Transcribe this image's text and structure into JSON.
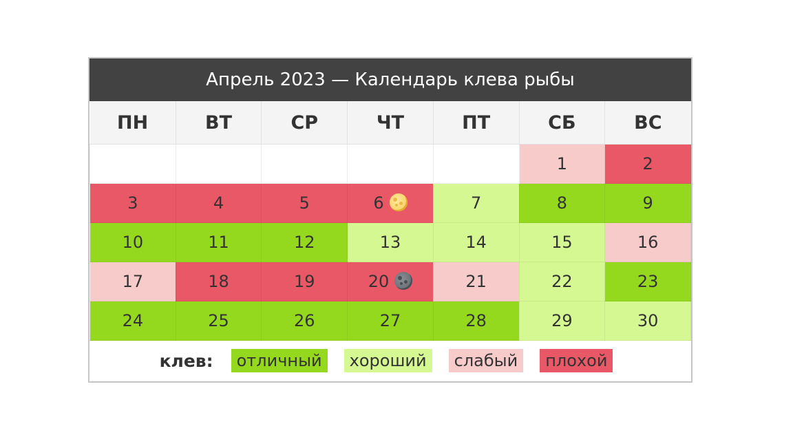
{
  "title": "Апрель 2023 — Календарь клева рыбы",
  "weekdays": [
    "ПН",
    "ВТ",
    "СР",
    "ЧТ",
    "ПТ",
    "СБ",
    "ВС"
  ],
  "weeks": [
    [
      {
        "day": "",
        "status": "empty"
      },
      {
        "day": "",
        "status": "empty"
      },
      {
        "day": "",
        "status": "empty"
      },
      {
        "day": "",
        "status": "empty"
      },
      {
        "day": "",
        "status": "empty"
      },
      {
        "day": "1",
        "status": "weak"
      },
      {
        "day": "2",
        "status": "bad"
      }
    ],
    [
      {
        "day": "3",
        "status": "bad"
      },
      {
        "day": "4",
        "status": "bad"
      },
      {
        "day": "5",
        "status": "bad"
      },
      {
        "day": "6",
        "status": "bad",
        "moon": "full-moon-icon"
      },
      {
        "day": "7",
        "status": "good"
      },
      {
        "day": "8",
        "status": "excellent"
      },
      {
        "day": "9",
        "status": "excellent"
      }
    ],
    [
      {
        "day": "10",
        "status": "excellent"
      },
      {
        "day": "11",
        "status": "excellent"
      },
      {
        "day": "12",
        "status": "excellent"
      },
      {
        "day": "13",
        "status": "good"
      },
      {
        "day": "14",
        "status": "good"
      },
      {
        "day": "15",
        "status": "good"
      },
      {
        "day": "16",
        "status": "weak"
      }
    ],
    [
      {
        "day": "17",
        "status": "weak"
      },
      {
        "day": "18",
        "status": "bad"
      },
      {
        "day": "19",
        "status": "bad"
      },
      {
        "day": "20",
        "status": "bad",
        "moon": "new-moon-icon"
      },
      {
        "day": "21",
        "status": "weak"
      },
      {
        "day": "22",
        "status": "good"
      },
      {
        "day": "23",
        "status": "excellent"
      }
    ],
    [
      {
        "day": "24",
        "status": "excellent"
      },
      {
        "day": "25",
        "status": "excellent"
      },
      {
        "day": "26",
        "status": "excellent"
      },
      {
        "day": "27",
        "status": "excellent"
      },
      {
        "day": "28",
        "status": "excellent"
      },
      {
        "day": "29",
        "status": "good"
      },
      {
        "day": "30",
        "status": "good"
      }
    ]
  ],
  "legend": {
    "title": "клев:",
    "items": [
      {
        "status": "excellent",
        "label": "отличный"
      },
      {
        "status": "good",
        "label": "хороший"
      },
      {
        "status": "weak",
        "label": "слабый"
      },
      {
        "status": "bad",
        "label": "плохой"
      }
    ]
  },
  "colors": {
    "header_bg": "#424242",
    "excellent": "#95d91e",
    "good": "#d6f893",
    "weak": "#f8cbcb",
    "bad": "#e85866"
  }
}
